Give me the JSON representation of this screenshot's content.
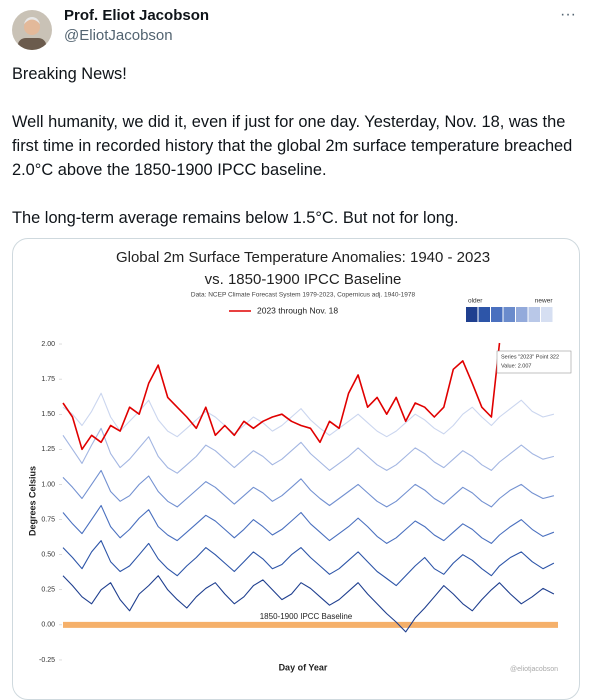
{
  "tweet": {
    "author_name": "Prof. Eliot Jacobson",
    "handle": "@EliotJacobson",
    "menu": "···",
    "paragraphs": [
      "Breaking News!",
      "Well humanity, we did it, even if just for one day. Yesterday, Nov. 18, was the first time in recorded history that the global 2m surface temperature breached 2.0°C above the 1850-1900 IPCC baseline.",
      "The long-term average remains below 1.5°C. But not for long."
    ]
  },
  "chart_data": {
    "type": "line",
    "title": "Global 2m Surface Temperature Anomalies: 1940 - 2023",
    "subtitle": "vs. 1850-1900 IPCC Baseline",
    "source": "Data: NCEP Climate Forecast System 1979-2023, Copernicus adj. 1940-1978",
    "x_label": "Day of Year",
    "y_label": "Degrees Celsius",
    "watermark": "@eliotjacobson",
    "legend_scale": {
      "low_label": "older",
      "high_label": "newer",
      "colors": [
        "#1f3f8f",
        "#2d55a8",
        "#4a70bf",
        "#6a8bcc",
        "#93aadb",
        "#b9c8e8",
        "#d6dff2"
      ]
    },
    "baseline": {
      "value": 0,
      "label": "1850-1900 IPCC Baseline",
      "color": "#f5b06a"
    },
    "tooltip": {
      "title": "Series \"2023\" Point 322",
      "label": "Value: 2.007"
    },
    "xlim": [
      1,
      365
    ],
    "ylim": [
      -0.3,
      2.05
    ],
    "yticks": [
      {
        "value": 2,
        "label": "2.00"
      },
      1.75,
      {
        "value": 1.5,
        "label": "1.50"
      },
      1.25,
      {
        "value": 1,
        "label": "1.00"
      },
      0.75,
      {
        "value": 0.5,
        "label": "0.50"
      },
      0.25,
      {
        "value": 0,
        "label": "0.00"
      },
      -0.25
    ],
    "x": [
      1,
      8,
      15,
      22,
      29,
      36,
      43,
      50,
      57,
      64,
      71,
      78,
      85,
      92,
      99,
      106,
      113,
      120,
      127,
      134,
      141,
      148,
      155,
      162,
      169,
      176,
      183,
      190,
      197,
      204,
      211,
      218,
      225,
      232,
      239,
      246,
      253,
      260,
      267,
      274,
      281,
      288,
      295,
      302,
      309,
      316,
      322,
      330,
      338,
      346,
      354,
      362
    ],
    "series": [
      {
        "color": "#1f3f8f",
        "values": [
          0.35,
          0.28,
          0.2,
          0.15,
          0.25,
          0.3,
          0.18,
          0.1,
          0.22,
          0.28,
          0.35,
          0.25,
          0.18,
          0.12,
          0.2,
          0.26,
          0.3,
          0.22,
          0.15,
          0.2,
          0.28,
          0.32,
          0.25,
          0.18,
          0.22,
          0.3,
          0.26,
          0.2,
          0.14,
          0.18,
          0.24,
          0.3,
          0.22,
          0.15,
          0.08,
          0.02,
          -0.05,
          0.05,
          0.12,
          0.2,
          0.28,
          0.22,
          0.15,
          0.1,
          0.18,
          0.25,
          0.3,
          0.22,
          0.15,
          0.2,
          0.26,
          0.22
        ]
      },
      {
        "color": "#2d55a8",
        "values": [
          0.55,
          0.48,
          0.4,
          0.52,
          0.6,
          0.45,
          0.38,
          0.42,
          0.5,
          0.58,
          0.47,
          0.4,
          0.35,
          0.42,
          0.48,
          0.55,
          0.5,
          0.44,
          0.38,
          0.45,
          0.52,
          0.47,
          0.4,
          0.43,
          0.5,
          0.55,
          0.48,
          0.42,
          0.36,
          0.4,
          0.46,
          0.52,
          0.45,
          0.38,
          0.33,
          0.28,
          0.35,
          0.42,
          0.48,
          0.4,
          0.36,
          0.44,
          0.5,
          0.46,
          0.4,
          0.35,
          0.42,
          0.48,
          0.52,
          0.45,
          0.4,
          0.44
        ]
      },
      {
        "color": "#4a70bf",
        "values": [
          0.8,
          0.72,
          0.65,
          0.75,
          0.85,
          0.7,
          0.62,
          0.68,
          0.76,
          0.82,
          0.7,
          0.64,
          0.6,
          0.66,
          0.72,
          0.78,
          0.74,
          0.68,
          0.62,
          0.68,
          0.75,
          0.7,
          0.64,
          0.68,
          0.74,
          0.8,
          0.72,
          0.66,
          0.6,
          0.65,
          0.7,
          0.76,
          0.7,
          0.63,
          0.58,
          0.62,
          0.68,
          0.74,
          0.7,
          0.64,
          0.6,
          0.66,
          0.72,
          0.68,
          0.62,
          0.58,
          0.64,
          0.7,
          0.75,
          0.68,
          0.63,
          0.66
        ]
      },
      {
        "color": "#7391d1",
        "values": [
          1.05,
          0.98,
          0.9,
          1.0,
          1.1,
          0.95,
          0.88,
          0.92,
          1.0,
          1.06,
          0.95,
          0.88,
          0.84,
          0.9,
          0.96,
          1.02,
          0.98,
          0.92,
          0.86,
          0.92,
          0.98,
          0.94,
          0.88,
          0.92,
          0.98,
          1.04,
          0.96,
          0.9,
          0.85,
          0.9,
          0.95,
          1.0,
          0.94,
          0.88,
          0.84,
          0.88,
          0.94,
          1.0,
          0.96,
          0.9,
          0.86,
          0.92,
          0.98,
          0.94,
          0.88,
          0.84,
          0.9,
          0.96,
          1.0,
          0.94,
          0.9,
          0.92
        ]
      },
      {
        "color": "#a3b6e2",
        "values": [
          1.35,
          1.25,
          1.15,
          1.28,
          1.4,
          1.22,
          1.12,
          1.18,
          1.26,
          1.34,
          1.2,
          1.12,
          1.08,
          1.14,
          1.2,
          1.28,
          1.24,
          1.18,
          1.12,
          1.18,
          1.24,
          1.2,
          1.14,
          1.18,
          1.24,
          1.3,
          1.22,
          1.16,
          1.1,
          1.15,
          1.2,
          1.26,
          1.2,
          1.14,
          1.1,
          1.14,
          1.2,
          1.26,
          1.22,
          1.16,
          1.12,
          1.18,
          1.24,
          1.2,
          1.14,
          1.1,
          1.16,
          1.22,
          1.28,
          1.22,
          1.18,
          1.2
        ]
      },
      {
        "color": "#cbd6ef",
        "values": [
          1.55,
          1.5,
          1.42,
          1.52,
          1.65,
          1.48,
          1.38,
          1.45,
          1.52,
          1.6,
          1.46,
          1.38,
          1.34,
          1.4,
          1.46,
          1.52,
          1.48,
          1.42,
          1.36,
          1.42,
          1.48,
          1.44,
          1.38,
          1.42,
          1.48,
          1.54,
          1.46,
          1.4,
          1.35,
          1.4,
          1.45,
          1.5,
          1.44,
          1.38,
          1.34,
          1.38,
          1.44,
          1.5,
          1.46,
          1.4,
          1.36,
          1.42,
          1.5,
          1.55,
          1.48,
          1.42,
          1.48,
          1.54,
          1.6,
          1.52,
          1.48,
          1.5
        ]
      },
      {
        "name": "2023 through Nov. 18",
        "color": "#e00000",
        "values": [
          1.58,
          1.48,
          1.25,
          1.35,
          1.3,
          1.42,
          1.38,
          1.55,
          1.5,
          1.72,
          1.85,
          1.62,
          1.55,
          1.48,
          1.4,
          1.55,
          1.35,
          1.42,
          1.35,
          1.45,
          1.4,
          1.45,
          1.48,
          1.5,
          1.45,
          1.42,
          1.4,
          1.3,
          1.45,
          1.4,
          1.65,
          1.78,
          1.55,
          1.62,
          1.5,
          1.62,
          1.45,
          1.58,
          1.55,
          1.48,
          1.55,
          1.82,
          1.88,
          1.72,
          1.55,
          1.48,
          2.007,
          null,
          null,
          null,
          null,
          null
        ]
      }
    ]
  }
}
